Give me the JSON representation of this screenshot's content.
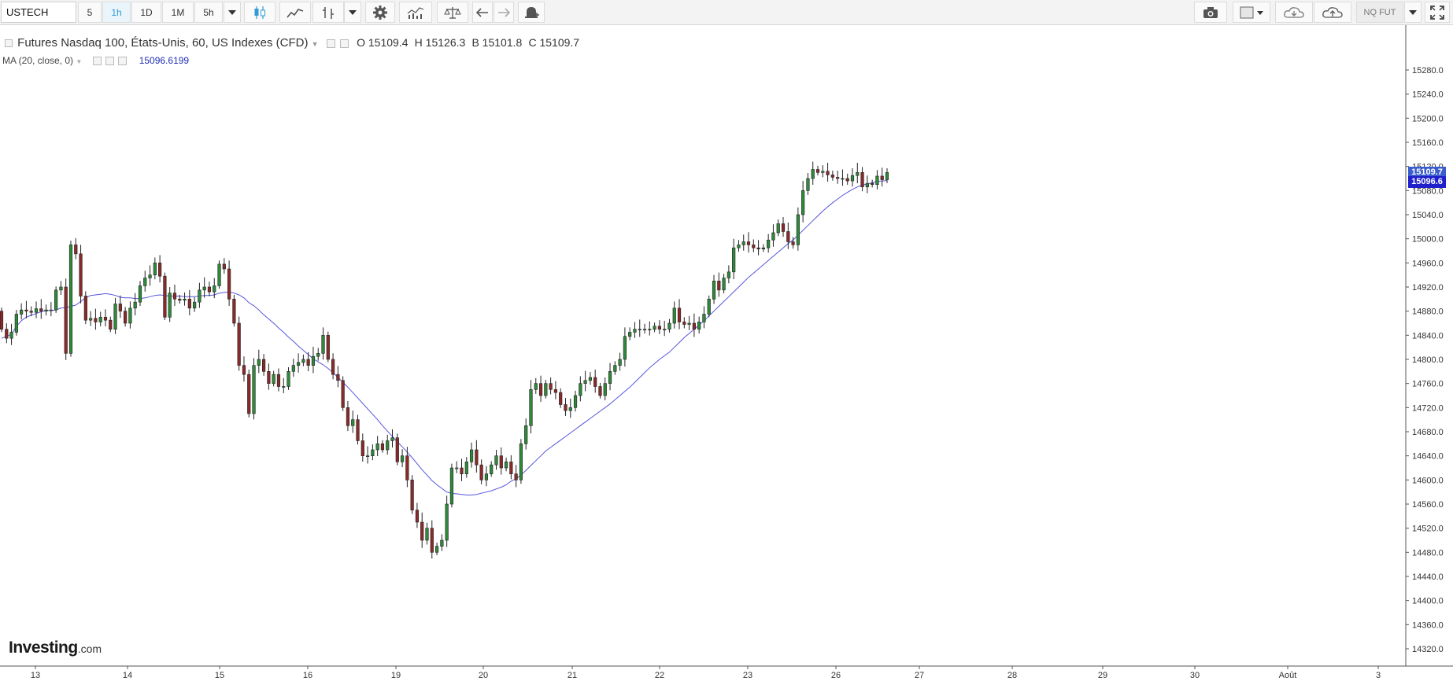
{
  "toolbar": {
    "symbol": "USTECH",
    "intervals": [
      "5",
      "1h",
      "1D",
      "1M",
      "5h"
    ],
    "active_interval": "1h",
    "right_badge": "NQ FUT",
    "icons": [
      "candles-icon",
      "line-chart-icon",
      "bar-chart-icon",
      "settings-gear-icon",
      "indicators-icon",
      "compare-scale-icon",
      "undo-icon",
      "redo-icon",
      "alert-bell-icon",
      "camera-icon",
      "color-square-icon",
      "cloud-download-icon",
      "cloud-upload-icon",
      "fullscreen-icon"
    ]
  },
  "legend": {
    "title": "Futures Nasdaq 100, États-Unis, 60, US Indexes (CFD)",
    "open": "O 15109.4",
    "high": "H 15126.3",
    "low": "B 15101.8",
    "close": "C 15109.7",
    "ma_label": "MA (20, close, 0)",
    "ma_value": "15096.6199"
  },
  "price_tags": {
    "last": "15109.7",
    "ma": "15096.6",
    "last_color": "#3a5ccc",
    "ma_color": "#1f1fcc"
  },
  "logo": {
    "name": "Investing",
    "suffix": ".com"
  },
  "colors": {
    "up": "#2e8a3a",
    "down": "#8b2a2a",
    "ma_line": "#5555dd"
  },
  "chart_data": {
    "type": "candlestick",
    "title": "Futures Nasdaq 100, États-Unis, 60, US Indexes (CFD)",
    "ylim": [
      14300,
      15300
    ],
    "y_ticks": [
      "14320.0",
      "14360.0",
      "14400.0",
      "14440.0",
      "14480.0",
      "14520.0",
      "14560.0",
      "14600.0",
      "14640.0",
      "14680.0",
      "14720.0",
      "14760.0",
      "14800.0",
      "14840.0",
      "14880.0",
      "14920.0",
      "14960.0",
      "15000.0",
      "15040.0",
      "15080.0",
      "15120.0",
      "15160.0",
      "15200.0",
      "15240.0",
      "15280.0"
    ],
    "x_ticks": [
      "13",
      "14",
      "15",
      "16",
      "19",
      "20",
      "21",
      "22",
      "23",
      "26",
      "27",
      "28",
      "29",
      "30",
      "Août",
      "3"
    ],
    "grid": false,
    "series": [
      {
        "name": "Futures Nasdaq 100",
        "close": [
          14850,
          14835,
          14845,
          14875,
          14882,
          14880,
          14878,
          14884,
          14880,
          14882,
          14882,
          14915,
          14920,
          14810,
          14990,
          14975,
          14905,
          14865,
          14868,
          14862,
          14870,
          14865,
          14850,
          14892,
          14880,
          14860,
          14885,
          14895,
          14922,
          14935,
          14940,
          14960,
          14938,
          14870,
          14910,
          14900,
          14898,
          14900,
          14885,
          14895,
          14915,
          14920,
          14912,
          14922,
          14958,
          14950,
          14900,
          14860,
          14790,
          14775,
          14710,
          14790,
          14800,
          14780,
          14760,
          14775,
          14755,
          14755,
          14780,
          14790,
          14795,
          14800,
          14790,
          14805,
          14810,
          14840,
          14800,
          14775,
          14765,
          14720,
          14690,
          14700,
          14665,
          14640,
          14640,
          14650,
          14660,
          14650,
          14665,
          14670,
          14630,
          14640,
          14600,
          14550,
          14530,
          14500,
          14520,
          14480,
          14490,
          14500,
          14560,
          14620,
          14620,
          14610,
          14630,
          14650,
          14625,
          14600,
          14610,
          14625,
          14640,
          14620,
          14630,
          14610,
          14600,
          14660,
          14690,
          14750,
          14760,
          14740,
          14760,
          14750,
          14745,
          14725,
          14715,
          14720,
          14740,
          14760,
          14765,
          14770,
          14755,
          14740,
          14760,
          14780,
          14790,
          14800,
          14838,
          14845,
          14850,
          14850,
          14850,
          14850,
          14855,
          14850,
          14850,
          14860,
          14885,
          14862,
          14858,
          14860,
          14850,
          14862,
          14875,
          14900,
          14930,
          14915,
          14935,
          14945,
          14985,
          14990,
          14995,
          14990,
          14985,
          14983,
          14985,
          14998,
          15010,
          15025,
          15012,
          14995,
          14990,
          15040,
          15080,
          15100,
          15115,
          15110,
          15112,
          15106,
          15102,
          15100,
          15100,
          15096,
          15105,
          15110,
          15086,
          15092,
          15090,
          15104,
          15098,
          15110
        ]
      },
      {
        "name": "MA (20, close, 0)",
        "values": [
          14835,
          14838,
          14842,
          14855,
          14864,
          14870,
          14873,
          14876,
          14879,
          14881,
          14881,
          14882,
          14885,
          14886,
          14888,
          14890,
          14896,
          14902,
          14906,
          14907,
          14908,
          14909,
          14908,
          14906,
          14903,
          14902,
          14902,
          14901,
          14901,
          14902,
          14904,
          14906,
          14907,
          14906,
          14905,
          14905,
          14905,
          14904,
          14904,
          14904,
          14905,
          14906,
          14906,
          14907,
          14910,
          14911,
          14912,
          14910,
          14907,
          14902,
          14894,
          14889,
          14882,
          14874,
          14867,
          14860,
          14852,
          14845,
          14837,
          14830,
          14822,
          14815,
          14808,
          14801,
          14796,
          14791,
          14785,
          14778,
          14770,
          14762,
          14754,
          14745,
          14736,
          14727,
          14718,
          14709,
          14700,
          14690,
          14681,
          14672,
          14663,
          14655,
          14646,
          14637,
          14627,
          14617,
          14608,
          14599,
          14592,
          14586,
          14580,
          14578,
          14577,
          14576,
          14575,
          14575,
          14576,
          14578,
          14580,
          14582,
          14585,
          14588,
          14592,
          14598,
          14602,
          14608,
          14616,
          14624,
          14632,
          14640,
          14648,
          14654,
          14660,
          14666,
          14672,
          14678,
          14684,
          14690,
          14696,
          14702,
          14708,
          14714,
          14720,
          14726,
          14733,
          14740,
          14747,
          14754,
          14762,
          14770,
          14778,
          14786,
          14793,
          14800,
          14806,
          14812,
          14820,
          14828,
          14836,
          14843,
          14850,
          14857,
          14864,
          14872,
          14880,
          14888,
          14896,
          14904,
          14912,
          14920,
          14928,
          14936,
          14943,
          14950,
          14957,
          14964,
          14971,
          14978,
          14985,
          14992,
          14998,
          15006,
          15014,
          15022,
          15030,
          15038,
          15046,
          15053,
          15060,
          15066,
          15072,
          15077,
          15082,
          15086,
          15089,
          15091,
          15093,
          15095,
          15096,
          15096.6
        ]
      }
    ]
  }
}
